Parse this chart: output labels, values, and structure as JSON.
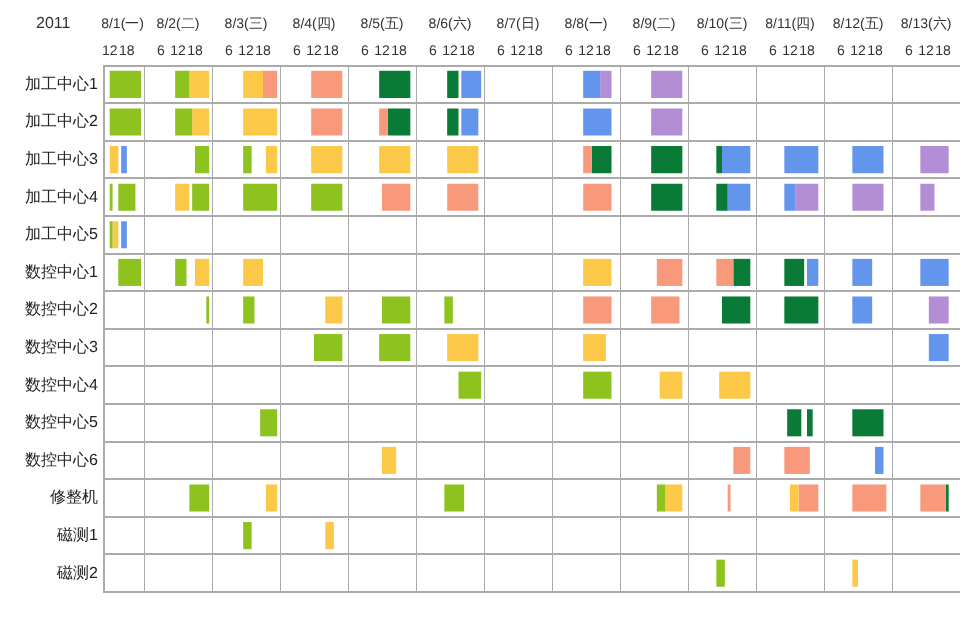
{
  "chart_data": [
    {
      "type": "bar",
      "orientation": "horizontal",
      "title": "8/1(一)",
      "annotations": [
        "2011"
      ],
      "legend": false,
      "grid": "y",
      "categories": [
        "加工中心1",
        "加工中心2",
        "加工中心3",
        "加工中心4",
        "加工中心5",
        "数控中心1",
        "数控中心2",
        "数控中心3",
        "数控中心4",
        "数控中心5",
        "数控中心6",
        "修整机",
        "磁测1",
        "磁测2"
      ],
      "xlim": [
        10,
        24
      ],
      "xticks": [
        12,
        18
      ],
      "series": [
        {
          "base": [
            12,
            12,
            12,
            12,
            12,
            15,
            null,
            null,
            null,
            null,
            null,
            null,
            null,
            null
          ],
          "values": [
            11,
            11,
            3,
            1,
            1,
            8,
            null,
            null,
            null,
            null,
            null,
            null,
            null,
            null
          ],
          "colors": [
            "#8dc21f",
            "#8dc21f",
            "#fcc847",
            "#8dc21f",
            "#8dc21f",
            "#8dc21f",
            null,
            null,
            null,
            null,
            null,
            null,
            null,
            null
          ]
        },
        {
          "base": [
            null,
            null,
            16,
            15,
            13,
            null,
            null,
            null,
            null,
            null,
            null,
            null,
            null,
            null
          ],
          "values": [
            null,
            null,
            2,
            6,
            2,
            null,
            null,
            null,
            null,
            null,
            null,
            null,
            null,
            null
          ],
          "colors": [
            null,
            null,
            "#6495ed",
            "#8dc21f",
            "#fcc847",
            null,
            null,
            null,
            null,
            null,
            null,
            null,
            null,
            null
          ]
        },
        {
          "base": [
            null,
            null,
            null,
            null,
            16,
            null,
            null,
            null,
            null,
            null,
            null,
            null,
            null,
            null
          ],
          "values": [
            null,
            null,
            null,
            null,
            2,
            null,
            null,
            null,
            null,
            null,
            null,
            null,
            null,
            null
          ],
          "colors": [
            null,
            null,
            null,
            null,
            "#6495ed",
            null,
            null,
            null,
            null,
            null,
            null,
            null,
            null,
            null
          ]
        }
      ]
    },
    {
      "type": "bar",
      "orientation": "horizontal",
      "title": "8/2(二)",
      "tick_labels": "x",
      "legend": false,
      "grid": "y",
      "categories": [
        null,
        null,
        null,
        null,
        null,
        null,
        null,
        null,
        null,
        null,
        null,
        null,
        null,
        null
      ],
      "xlim": [
        0,
        24
      ],
      "xticks": [
        6,
        12,
        18
      ],
      "series": [
        {
          "base": [
            11,
            11,
            18,
            11,
            null,
            11,
            22,
            null,
            null,
            null,
            null,
            16,
            null,
            null
          ],
          "values": [
            5,
            6,
            5,
            5,
            null,
            4,
            1,
            null,
            null,
            null,
            null,
            7,
            null,
            null
          ],
          "colors": [
            "#8dc21f",
            "#8dc21f",
            "#8dc21f",
            "#fcc847",
            null,
            "#8dc21f",
            "#8dc21f",
            null,
            null,
            null,
            null,
            "#8dc21f",
            null,
            null
          ]
        },
        {
          "base": [
            16,
            17,
            null,
            17,
            null,
            18,
            null,
            null,
            null,
            null,
            null,
            null,
            null,
            null
          ],
          "values": [
            7,
            6,
            null,
            6,
            null,
            5,
            null,
            null,
            null,
            null,
            null,
            null,
            null,
            null
          ],
          "colors": [
            "#fcc847",
            "#fcc847",
            null,
            "#8dc21f",
            null,
            "#fcc847",
            null,
            null,
            null,
            null,
            null,
            null,
            null,
            null
          ]
        }
      ]
    },
    {
      "type": "bar",
      "orientation": "horizontal",
      "title": "8/3(三)",
      "tick_labels": "x",
      "legend": false,
      "grid": "y",
      "categories": [
        null,
        null,
        null,
        null,
        null,
        null,
        null,
        null,
        null,
        null,
        null,
        null,
        null,
        null
      ],
      "xlim": [
        0,
        24
      ],
      "xticks": [
        6,
        12,
        18
      ],
      "series": [
        {
          "base": [
            11,
            11,
            11,
            11,
            null,
            11,
            11,
            null,
            null,
            17,
            null,
            19,
            11,
            null
          ],
          "values": [
            7,
            12,
            3,
            12,
            null,
            7,
            4,
            null,
            null,
            6,
            null,
            4,
            3,
            null
          ],
          "colors": [
            "#fcc847",
            "#fcc847",
            "#8dc21f",
            "#8dc21f",
            null,
            "#fcc847",
            "#8dc21f",
            null,
            null,
            "#8dc21f",
            null,
            "#fcc847",
            "#8dc21f",
            null
          ]
        },
        {
          "base": [
            18,
            null,
            19,
            null,
            null,
            null,
            null,
            null,
            null,
            null,
            null,
            null,
            null,
            null
          ],
          "values": [
            5,
            null,
            4,
            null,
            null,
            null,
            null,
            null,
            null,
            null,
            null,
            null,
            null,
            null
          ],
          "colors": [
            "#f7997a",
            null,
            "#fcc847",
            null,
            null,
            null,
            null,
            null,
            null,
            null,
            null,
            null,
            null,
            null
          ]
        }
      ]
    },
    {
      "type": "bar",
      "orientation": "horizontal",
      "title": "8/4(四)",
      "tick_labels": "x",
      "legend": false,
      "grid": "y",
      "categories": [
        null,
        null,
        null,
        null,
        null,
        null,
        null,
        null,
        null,
        null,
        null,
        null,
        null,
        null
      ],
      "xlim": [
        0,
        24
      ],
      "xticks": [
        6,
        12,
        18
      ],
      "series": [
        {
          "base": [
            11,
            11,
            11,
            11,
            null,
            null,
            16,
            12,
            null,
            null,
            null,
            null,
            16,
            null
          ],
          "values": [
            11,
            11,
            11,
            11,
            null,
            null,
            6,
            10,
            null,
            null,
            null,
            null,
            3,
            null
          ],
          "colors": [
            "#f7997a",
            "#f7997a",
            "#fcc847",
            "#8dc21f",
            null,
            null,
            "#fcc847",
            "#8dc21f",
            null,
            null,
            null,
            null,
            "#fcc847",
            null
          ]
        }
      ]
    },
    {
      "type": "bar",
      "orientation": "horizontal",
      "title": "8/5(五)",
      "tick_labels": "x",
      "legend": false,
      "grid": "y",
      "categories": [
        null,
        null,
        null,
        null,
        null,
        null,
        null,
        null,
        null,
        null,
        null,
        null,
        null,
        null
      ],
      "xlim": [
        0,
        24
      ],
      "xticks": [
        6,
        12,
        18
      ],
      "series": [
        {
          "base": [
            11,
            11,
            11,
            12,
            null,
            null,
            12,
            11,
            null,
            null,
            12,
            null,
            null,
            null
          ],
          "values": [
            11,
            3,
            11,
            10,
            null,
            null,
            10,
            11,
            null,
            null,
            5,
            null,
            null,
            null
          ],
          "colors": [
            "#0a7b37",
            "#f7997a",
            "#fcc847",
            "#f7997a",
            null,
            null,
            "#8dc21f",
            "#8dc21f",
            null,
            null,
            "#fcc847",
            null,
            null,
            null
          ]
        },
        {
          "base": [
            null,
            14,
            null,
            null,
            null,
            null,
            null,
            null,
            null,
            null,
            null,
            null,
            null,
            null
          ],
          "values": [
            null,
            8,
            null,
            null,
            null,
            null,
            null,
            null,
            null,
            null,
            null,
            null,
            null,
            null
          ],
          "colors": [
            null,
            "#0a7b37",
            null,
            null,
            null,
            null,
            null,
            null,
            null,
            null,
            null,
            null,
            null,
            null
          ]
        }
      ]
    },
    {
      "type": "bar",
      "orientation": "horizontal",
      "title": "8/6(六)",
      "tick_labels": "x",
      "legend": false,
      "grid": "y",
      "categories": [
        null,
        null,
        null,
        null,
        null,
        null,
        null,
        null,
        null,
        null,
        null,
        null,
        null,
        null
      ],
      "xlim": [
        0,
        24
      ],
      "xticks": [
        6,
        12,
        18
      ],
      "series": [
        {
          "base": [
            11,
            11,
            11,
            11,
            null,
            null,
            10,
            11,
            15,
            null,
            null,
            10,
            null,
            null
          ],
          "values": [
            4,
            4,
            11,
            11,
            null,
            null,
            3,
            11,
            8,
            null,
            null,
            7,
            null,
            null
          ],
          "colors": [
            "#0a7b37",
            "#0a7b37",
            "#fcc847",
            "#f7997a",
            null,
            null,
            "#8dc21f",
            "#fcc847",
            "#8dc21f",
            null,
            null,
            "#8dc21f",
            null,
            null
          ]
        },
        {
          "base": [
            16,
            16,
            null,
            null,
            null,
            null,
            null,
            null,
            null,
            null,
            null,
            null,
            null,
            null
          ],
          "values": [
            7,
            6,
            null,
            null,
            null,
            null,
            null,
            null,
            null,
            null,
            null,
            null,
            null,
            null
          ],
          "colors": [
            "#6495ed",
            "#6495ed",
            null,
            null,
            null,
            null,
            null,
            null,
            null,
            null,
            null,
            null,
            null,
            null
          ]
        }
      ]
    },
    {
      "type": "bar",
      "orientation": "horizontal",
      "title": "8/7(日)",
      "tick_labels": "x",
      "legend": false,
      "grid": "y",
      "categories": [
        null,
        null,
        null,
        null,
        null,
        null,
        null,
        null,
        null,
        null,
        null,
        null,
        null,
        null
      ],
      "xlim": [
        0,
        24
      ],
      "xticks": [
        6,
        12,
        18
      ]
    },
    {
      "type": "bar",
      "orientation": "horizontal",
      "title": "8/8(一)",
      "tick_labels": "x",
      "legend": false,
      "grid": "y",
      "categories": [
        null,
        null,
        null,
        null,
        null,
        null,
        null,
        null,
        null,
        null,
        null,
        null,
        null,
        null
      ],
      "xlim": [
        0,
        24
      ],
      "xticks": [
        6,
        12,
        18
      ],
      "series": [
        {
          "base": [
            11,
            11,
            11,
            11,
            null,
            11,
            11,
            11,
            11,
            null,
            null,
            null,
            null,
            null
          ],
          "values": [
            6,
            10,
            3,
            10,
            null,
            10,
            10,
            8,
            10,
            null,
            null,
            null,
            null,
            null
          ],
          "colors": [
            "#6495ed",
            "#6495ed",
            "#f7997a",
            "#f7997a",
            null,
            "#fcc847",
            "#f7997a",
            "#fcc847",
            "#8dc21f",
            null,
            null,
            null,
            null,
            null
          ]
        },
        {
          "base": [
            17,
            null,
            14,
            null,
            null,
            null,
            null,
            null,
            null,
            null,
            null,
            null,
            null,
            null
          ],
          "values": [
            4,
            null,
            7,
            null,
            null,
            null,
            null,
            null,
            null,
            null,
            null,
            null,
            null,
            null
          ],
          "colors": [
            "#b48ed4",
            null,
            "#0a7b37",
            null,
            null,
            null,
            null,
            null,
            null,
            null,
            null,
            null,
            null,
            null
          ]
        }
      ]
    },
    {
      "type": "bar",
      "orientation": "horizontal",
      "title": "8/9(二)",
      "tick_labels": "x",
      "legend": false,
      "grid": "y",
      "categories": [
        null,
        null,
        null,
        null,
        null,
        null,
        null,
        null,
        null,
        null,
        null,
        null,
        null,
        null
      ],
      "xlim": [
        0,
        24
      ],
      "xticks": [
        6,
        12,
        18
      ],
      "series": [
        {
          "base": [
            11,
            11,
            11,
            11,
            null,
            13,
            11,
            null,
            14,
            null,
            null,
            13,
            null,
            null
          ],
          "values": [
            11,
            11,
            11,
            11,
            null,
            9,
            10,
            null,
            8,
            null,
            null,
            3,
            null,
            null
          ],
          "colors": [
            "#b48ed4",
            "#b48ed4",
            "#0a7b37",
            "#0a7b37",
            null,
            "#f7997a",
            "#f7997a",
            null,
            "#fcc847",
            null,
            null,
            "#8dc21f",
            null,
            null
          ]
        },
        {
          "base": [
            null,
            null,
            null,
            null,
            null,
            null,
            null,
            null,
            null,
            null,
            null,
            16,
            null,
            null
          ],
          "values": [
            null,
            null,
            null,
            null,
            null,
            null,
            null,
            null,
            null,
            null,
            null,
            6,
            null,
            null
          ],
          "colors": [
            null,
            null,
            null,
            null,
            null,
            null,
            null,
            null,
            null,
            null,
            null,
            "#fcc847",
            null,
            null
          ]
        }
      ]
    },
    {
      "type": "bar",
      "orientation": "horizontal",
      "title": "8/10(三)",
      "tick_labels": "x",
      "legend": false,
      "grid": "y",
      "categories": [
        null,
        null,
        null,
        null,
        null,
        null,
        null,
        null,
        null,
        null,
        null,
        null,
        null,
        null
      ],
      "xlim": [
        0,
        24
      ],
      "xticks": [
        6,
        12,
        18
      ],
      "series": [
        {
          "base": [
            null,
            null,
            10,
            10,
            null,
            10,
            12,
            null,
            11,
            null,
            16,
            14,
            null,
            10
          ],
          "values": [
            null,
            null,
            2,
            4,
            null,
            6,
            10,
            null,
            11,
            null,
            6,
            1,
            null,
            3
          ],
          "colors": [
            null,
            null,
            "#0a7b37",
            "#0a7b37",
            null,
            "#f7997a",
            "#0a7b37",
            null,
            "#fcc847",
            null,
            "#f7997a",
            "#f7997a",
            null,
            "#8dc21f"
          ]
        },
        {
          "base": [
            null,
            null,
            12,
            14,
            null,
            16,
            null,
            null,
            null,
            null,
            null,
            null,
            null,
            null
          ],
          "values": [
            null,
            null,
            10,
            8,
            null,
            6,
            null,
            null,
            null,
            null,
            null,
            null,
            null,
            null
          ],
          "colors": [
            null,
            null,
            "#6495ed",
            "#6495ed",
            null,
            "#0a7b37",
            null,
            null,
            null,
            null,
            null,
            null,
            null,
            null
          ]
        }
      ]
    },
    {
      "type": "bar",
      "orientation": "horizontal",
      "title": "8/11(四)",
      "tick_labels": "x",
      "legend": false,
      "grid": "y",
      "categories": [
        null,
        null,
        null,
        null,
        null,
        null,
        null,
        null,
        null,
        null,
        null,
        null,
        null,
        null
      ],
      "xlim": [
        0,
        24
      ],
      "xticks": [
        6,
        12,
        18
      ],
      "series": [
        {
          "base": [
            null,
            null,
            10,
            10,
            null,
            10,
            10,
            null,
            null,
            11,
            10,
            12,
            null,
            null
          ],
          "values": [
            null,
            null,
            12,
            4,
            null,
            7,
            12,
            null,
            null,
            5,
            9,
            3,
            null,
            null
          ],
          "colors": [
            null,
            null,
            "#6495ed",
            "#6495ed",
            null,
            "#0a7b37",
            "#0a7b37",
            null,
            null,
            "#0a7b37",
            "#f7997a",
            "#fcc847",
            null,
            null
          ]
        },
        {
          "base": [
            null,
            null,
            null,
            14,
            null,
            18,
            null,
            null,
            null,
            18,
            null,
            15,
            null,
            null
          ],
          "values": [
            null,
            null,
            null,
            8,
            null,
            4,
            null,
            null,
            null,
            2,
            null,
            7,
            null,
            null
          ],
          "colors": [
            null,
            null,
            null,
            "#b48ed4",
            null,
            "#6495ed",
            null,
            null,
            null,
            "#0a7b37",
            null,
            "#f7997a",
            null,
            null
          ]
        }
      ]
    },
    {
      "type": "bar",
      "orientation": "horizontal",
      "title": "8/12(五)",
      "tick_labels": "x",
      "legend": false,
      "grid": "y",
      "categories": [
        null,
        null,
        null,
        null,
        null,
        null,
        null,
        null,
        null,
        null,
        null,
        null,
        null,
        null
      ],
      "xlim": [
        0,
        24
      ],
      "xticks": [
        6,
        12,
        18
      ],
      "series": [
        {
          "base": [
            null,
            null,
            10,
            10,
            null,
            10,
            10,
            null,
            null,
            10,
            18,
            10,
            null,
            10
          ],
          "values": [
            null,
            null,
            11,
            11,
            null,
            7,
            7,
            null,
            null,
            11,
            3,
            12,
            null,
            2
          ],
          "colors": [
            null,
            null,
            "#6495ed",
            "#b48ed4",
            null,
            "#6495ed",
            "#6495ed",
            null,
            null,
            "#0a7b37",
            "#6495ed",
            "#f7997a",
            null,
            "#fcc847"
          ]
        }
      ]
    },
    {
      "type": "bar",
      "orientation": "horizontal",
      "title": "8/13(六)",
      "tick_labels": "x",
      "legend": false,
      "grid": "y",
      "categories": [
        null,
        null,
        null,
        null,
        null,
        null,
        null,
        null,
        null,
        null,
        null,
        null,
        null,
        null
      ],
      "xlim": [
        0,
        24
      ],
      "xticks": [
        6,
        12,
        18
      ],
      "series": [
        {
          "base": [
            null,
            null,
            10,
            10,
            null,
            10,
            13,
            13,
            null,
            null,
            null,
            10,
            null,
            null
          ],
          "values": [
            null,
            null,
            10,
            5,
            null,
            10,
            7,
            7,
            null,
            null,
            null,
            9,
            null,
            null
          ],
          "colors": [
            null,
            null,
            "#b48ed4",
            "#b48ed4",
            null,
            "#6495ed",
            "#b48ed4",
            "#6495ed",
            null,
            null,
            null,
            "#f7997a",
            null,
            null
          ]
        },
        {
          "base": [
            null,
            null,
            null,
            null,
            null,
            null,
            null,
            null,
            null,
            null,
            null,
            19,
            null,
            null
          ],
          "values": [
            null,
            null,
            null,
            null,
            null,
            null,
            null,
            null,
            null,
            null,
            null,
            1,
            null,
            null
          ],
          "colors": [
            null,
            null,
            null,
            null,
            null,
            null,
            null,
            null,
            null,
            null,
            null,
            "#0a7b37",
            null,
            null
          ]
        }
      ]
    }
  ]
}
